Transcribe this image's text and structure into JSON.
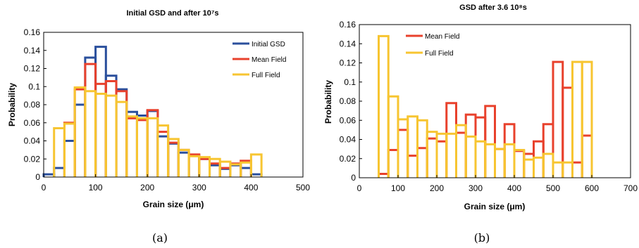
{
  "figure": {
    "caption_a": "(a)",
    "caption_b": "(b)"
  },
  "chart_data": [
    {
      "type": "bar",
      "title": "Initial GSD and after 10⁷s",
      "xlabel": "Grain size (μm)",
      "ylabel": "Probability",
      "xlim": [
        0,
        500
      ],
      "ylim": [
        0,
        0.16
      ],
      "xticks": [
        0,
        100,
        200,
        300,
        400,
        500
      ],
      "yticks": [
        0,
        0.02,
        0.04,
        0.06,
        0.08,
        0.1,
        0.12,
        0.14,
        0.16
      ],
      "ytick_labels": [
        "0",
        "0.02",
        "0.04",
        "0.06",
        "0.08",
        "0.1",
        "0.12",
        "0.14",
        "0.16"
      ],
      "bin_width": 20,
      "legend_position": "top-right",
      "series": [
        {
          "name": "Initial GSD",
          "color": "#2a4f9c",
          "x": [
            10,
            30,
            50,
            70,
            90,
            110,
            130,
            150,
            170,
            190,
            210,
            230,
            250,
            270,
            290,
            310,
            330,
            350,
            370,
            390,
            410
          ],
          "values": [
            0.003,
            0.01,
            0.04,
            0.08,
            0.132,
            0.144,
            0.112,
            0.097,
            0.072,
            0.068,
            0.073,
            0.045,
            0.037,
            0.027,
            0.024,
            0.02,
            0.013,
            0.009,
            0.013,
            0.01,
            0.003
          ]
        },
        {
          "name": "Mean Field",
          "color": "#e8412c",
          "x": [
            50,
            70,
            90,
            110,
            130,
            150,
            170,
            190,
            210,
            230,
            250,
            270,
            290,
            310,
            330,
            350,
            370,
            390
          ],
          "values": [
            0.06,
            0.097,
            0.125,
            0.103,
            0.106,
            0.095,
            0.065,
            0.063,
            0.074,
            0.05,
            0.038,
            0.03,
            0.025,
            0.02,
            0.015,
            0.01,
            0.015,
            0.018
          ]
        },
        {
          "name": "Full Field",
          "color": "#f7c531",
          "x": [
            30,
            50,
            70,
            90,
            110,
            130,
            150,
            170,
            190,
            210,
            230,
            250,
            270,
            290,
            310,
            330,
            350,
            370,
            390,
            410
          ],
          "values": [
            0.054,
            0.059,
            0.099,
            0.095,
            0.092,
            0.09,
            0.083,
            0.067,
            0.065,
            0.065,
            0.057,
            0.042,
            0.03,
            0.023,
            0.022,
            0.02,
            0.017,
            0.014,
            0.016,
            0.025
          ]
        }
      ]
    },
    {
      "type": "bar",
      "title": "GSD after 3.6 10⁸s",
      "xlabel": "Grain size (μm)",
      "ylabel": "Probability",
      "xlim": [
        0,
        700
      ],
      "ylim": [
        0,
        0.16
      ],
      "xticks": [
        0,
        100,
        200,
        300,
        400,
        500,
        600,
        700
      ],
      "yticks": [
        0,
        0.02,
        0.04,
        0.06,
        0.08,
        0.1,
        0.12,
        0.14,
        0.16
      ],
      "ytick_labels": [
        "0",
        "0.02",
        "0.04",
        "0.06",
        "0.08",
        "0.1",
        "0.12",
        "0.14",
        "0.16"
      ],
      "bin_width": 25,
      "legend_position": "top-left",
      "series": [
        {
          "name": "Mean Field",
          "color": "#e8412c",
          "x": [
            62.5,
            87.5,
            112.5,
            137.5,
            162.5,
            187.5,
            212.5,
            237.5,
            262.5,
            287.5,
            312.5,
            337.5,
            362.5,
            387.5,
            412.5,
            437.5,
            462.5,
            487.5,
            512.5,
            537.5,
            562.5,
            587.5
          ],
          "values": [
            0.004,
            0.029,
            0.05,
            0.023,
            0.031,
            0.041,
            0.038,
            0.078,
            0.047,
            0.066,
            0.063,
            0.075,
            0.03,
            0.056,
            0.028,
            0.025,
            0.038,
            0.056,
            0.121,
            0.094,
            0.016,
            0.044
          ]
        },
        {
          "name": "Full Field",
          "color": "#f7c531",
          "x": [
            62.5,
            87.5,
            112.5,
            137.5,
            162.5,
            187.5,
            212.5,
            237.5,
            262.5,
            287.5,
            312.5,
            337.5,
            362.5,
            387.5,
            412.5,
            437.5,
            462.5,
            487.5,
            512.5,
            537.5,
            562.5,
            587.5
          ],
          "values": [
            0.148,
            0.085,
            0.061,
            0.064,
            0.06,
            0.048,
            0.046,
            0.046,
            0.055,
            0.043,
            0.038,
            0.035,
            0.03,
            0.035,
            0.029,
            0.019,
            0.021,
            0.025,
            0.016,
            0.016,
            0.121,
            0.121
          ]
        }
      ]
    }
  ]
}
